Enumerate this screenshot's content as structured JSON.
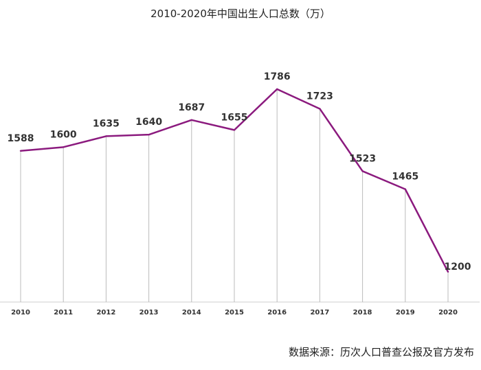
{
  "chart_data": {
    "type": "line",
    "title": "2010-2020年中国出生人口总数（万）",
    "source": "数据来源：历次人口普查公报及官方发布",
    "categories": [
      "2010",
      "2011",
      "2012",
      "2013",
      "2014",
      "2015",
      "2016",
      "2017",
      "2018",
      "2019",
      "2020"
    ],
    "values": [
      1588,
      1600,
      1635,
      1640,
      1687,
      1655,
      1786,
      1723,
      1523,
      1465,
      1200
    ],
    "xlabel": "",
    "ylabel": "",
    "ylim": [
      1103,
      2072
    ],
    "grid": "vertical drop lines at each point",
    "data_labels": true,
    "line_color": "#8B1A7E",
    "dropline_color": "#bbbbbb"
  }
}
